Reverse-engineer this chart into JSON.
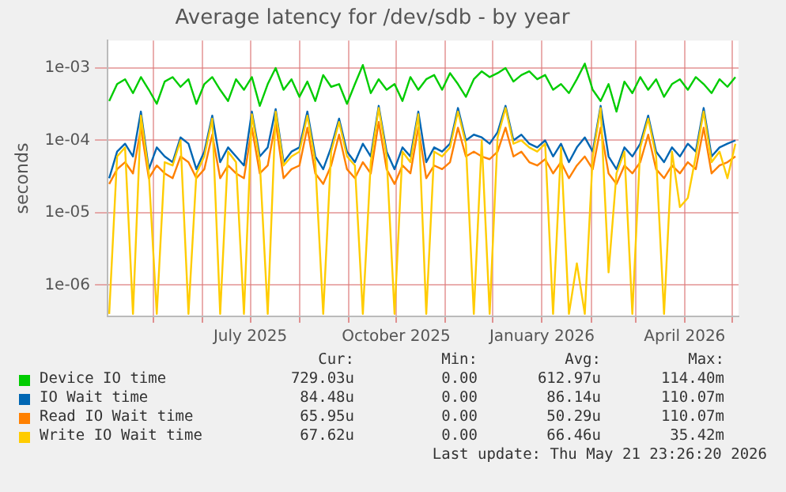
{
  "chart_data": {
    "type": "line",
    "title": "Average latency for /dev/sdb - by year",
    "ylabel": "seconds",
    "log": "y",
    "grid": true,
    "legend": "bottom",
    "marker": "none",
    "line_style": "solid",
    "xlim": [
      "2025-04-02",
      "2026-05-05"
    ],
    "xticks": [
      {
        "value": "2025-05-01",
        "label": null
      },
      {
        "value": "2025-06-01",
        "label": null
      },
      {
        "value": "2025-07-01",
        "label": "July 2025"
      },
      {
        "value": "2025-08-01",
        "label": null
      },
      {
        "value": "2025-09-01",
        "label": null
      },
      {
        "value": "2025-10-01",
        "label": "October 2025"
      },
      {
        "value": "2025-11-01",
        "label": null
      },
      {
        "value": "2025-12-01",
        "label": null
      },
      {
        "value": "2026-01-01",
        "label": "January 2026"
      },
      {
        "value": "2026-02-01",
        "label": null
      },
      {
        "value": "2026-03-01",
        "label": null
      },
      {
        "value": "2026-04-01",
        "label": "April 2026"
      },
      {
        "value": "2026-05-01",
        "label": null
      }
    ],
    "ylim": [
      3.7e-07,
      0.0024
    ],
    "yticks": [
      {
        "value": 1e-06,
        "label": "1e-06"
      },
      {
        "value": 1e-05,
        "label": "1e-05"
      },
      {
        "value": 0.0001,
        "label": "1e-04"
      },
      {
        "value": 0.001,
        "label": "1e-03"
      }
    ],
    "x": [
      "2025-04-03",
      "2025-04-08",
      "2025-04-13",
      "2025-04-18",
      "2025-04-23",
      "2025-04-28",
      "2025-05-03",
      "2025-05-08",
      "2025-05-13",
      "2025-05-18",
      "2025-05-23",
      "2025-05-28",
      "2025-06-02",
      "2025-06-07",
      "2025-06-12",
      "2025-06-17",
      "2025-06-22",
      "2025-06-27",
      "2025-07-02",
      "2025-07-07",
      "2025-07-12",
      "2025-07-17",
      "2025-07-22",
      "2025-07-27",
      "2025-08-01",
      "2025-08-06",
      "2025-08-11",
      "2025-08-16",
      "2025-08-21",
      "2025-08-26",
      "2025-08-31",
      "2025-09-05",
      "2025-09-10",
      "2025-09-15",
      "2025-09-20",
      "2025-09-25",
      "2025-09-30",
      "2025-10-05",
      "2025-10-10",
      "2025-10-15",
      "2025-10-20",
      "2025-10-25",
      "2025-10-30",
      "2025-11-04",
      "2025-11-09",
      "2025-11-14",
      "2025-11-19",
      "2025-11-24",
      "2025-11-29",
      "2025-12-04",
      "2025-12-09",
      "2025-12-14",
      "2025-12-19",
      "2025-12-24",
      "2025-12-29",
      "2026-01-03",
      "2026-01-08",
      "2026-01-13",
      "2026-01-18",
      "2026-01-23",
      "2026-01-28",
      "2026-02-02",
      "2026-02-07",
      "2026-02-12",
      "2026-02-17",
      "2026-02-22",
      "2026-02-27",
      "2026-03-04",
      "2026-03-09",
      "2026-03-14",
      "2026-03-19",
      "2026-03-24",
      "2026-03-29",
      "2026-04-03",
      "2026-04-08",
      "2026-04-13",
      "2026-04-18",
      "2026-04-23",
      "2026-04-28",
      "2026-05-03"
    ],
    "series": [
      {
        "name": "Device IO time",
        "color": "#00cc00",
        "values": [
          0.00035,
          0.0006,
          0.0007,
          0.00045,
          0.00075,
          0.0005,
          0.00032,
          0.00065,
          0.00075,
          0.00055,
          0.0007,
          0.00032,
          0.0006,
          0.00075,
          0.0005,
          0.00035,
          0.0007,
          0.0005,
          0.00075,
          0.0003,
          0.0006,
          0.001,
          0.0005,
          0.0007,
          0.0004,
          0.00065,
          0.00035,
          0.0008,
          0.00055,
          0.0006,
          0.00032,
          0.0006,
          0.0011,
          0.00045,
          0.0007,
          0.0005,
          0.0006,
          0.00035,
          0.00075,
          0.0005,
          0.0007,
          0.0008,
          0.0005,
          0.00085,
          0.0006,
          0.0004,
          0.0007,
          0.0009,
          0.00075,
          0.00085,
          0.001,
          0.00065,
          0.0008,
          0.0009,
          0.0007,
          0.0008,
          0.0005,
          0.0006,
          0.00045,
          0.0007,
          0.00115,
          0.0005,
          0.00035,
          0.0006,
          0.00025,
          0.00065,
          0.00045,
          0.00075,
          0.0005,
          0.0007,
          0.0004,
          0.0006,
          0.0007,
          0.0005,
          0.00075,
          0.0006,
          0.00045,
          0.0007,
          0.00055,
          0.00075
        ]
      },
      {
        "name": "IO Wait time",
        "color": "#0066b3",
        "values": [
          3e-05,
          7e-05,
          9e-05,
          6e-05,
          0.00025,
          4e-05,
          8e-05,
          6e-05,
          5e-05,
          0.00011,
          9e-05,
          4e-05,
          7e-05,
          0.00022,
          5e-05,
          8e-05,
          6e-05,
          4.5e-05,
          0.00025,
          6e-05,
          8e-05,
          0.00027,
          5e-05,
          7e-05,
          8e-05,
          0.00025,
          6e-05,
          4e-05,
          8e-05,
          0.0002,
          7e-05,
          5e-05,
          9e-05,
          6e-05,
          0.0003,
          7e-05,
          4e-05,
          8e-05,
          6e-05,
          0.00025,
          5e-05,
          8e-05,
          7e-05,
          9e-05,
          0.00028,
          0.0001,
          0.00012,
          0.00011,
          9e-05,
          0.00013,
          0.0003,
          0.0001,
          0.00012,
          9e-05,
          8e-05,
          0.0001,
          6e-05,
          9e-05,
          5e-05,
          8e-05,
          0.00011,
          7e-05,
          0.0003,
          6e-05,
          4e-05,
          8e-05,
          6e-05,
          9e-05,
          0.00022,
          7e-05,
          5e-05,
          8e-05,
          6e-05,
          9e-05,
          7e-05,
          0.00028,
          6e-05,
          8e-05,
          9e-05,
          0.0001
        ]
      },
      {
        "name": "Read IO Wait time",
        "color": "#ff8000",
        "values": [
          2.5e-05,
          4e-05,
          5e-05,
          3.5e-05,
          0.00015,
          3e-05,
          4.5e-05,
          3.5e-05,
          3e-05,
          6e-05,
          5e-05,
          3e-05,
          4e-05,
          0.00012,
          3e-05,
          4.5e-05,
          3.5e-05,
          3e-05,
          0.00015,
          3.5e-05,
          4.5e-05,
          0.00018,
          3e-05,
          4e-05,
          4.5e-05,
          0.00015,
          3.5e-05,
          2.5e-05,
          4.5e-05,
          0.00012,
          4e-05,
          3e-05,
          5e-05,
          3.5e-05,
          0.00018,
          4e-05,
          2.5e-05,
          4.5e-05,
          3.5e-05,
          0.00015,
          3e-05,
          4.5e-05,
          4e-05,
          5e-05,
          0.00015,
          6e-05,
          7e-05,
          6e-05,
          5.5e-05,
          7e-05,
          0.00015,
          6e-05,
          7e-05,
          5e-05,
          4.5e-05,
          5.5e-05,
          3.5e-05,
          5e-05,
          3e-05,
          4.5e-05,
          6e-05,
          4e-05,
          0.00015,
          3.5e-05,
          2.5e-05,
          4.5e-05,
          3.5e-05,
          5e-05,
          0.00012,
          4e-05,
          3e-05,
          4.5e-05,
          3.5e-05,
          5e-05,
          4e-05,
          0.00015,
          3.5e-05,
          4.5e-05,
          5e-05,
          6e-05
        ]
      },
      {
        "name": "Write IO Wait time",
        "color": "#ffcc00",
        "values": [
          4e-07,
          6e-05,
          8e-05,
          4e-07,
          0.00022,
          3.5e-05,
          4e-07,
          5e-05,
          4.5e-05,
          0.0001,
          4e-07,
          3.5e-05,
          6e-05,
          0.0002,
          4e-07,
          7e-05,
          5e-05,
          4e-07,
          0.00023,
          5e-05,
          4e-07,
          0.00025,
          4.5e-05,
          6e-05,
          7e-05,
          0.00022,
          5e-05,
          4e-07,
          7e-05,
          0.00018,
          6e-05,
          4.5e-05,
          4e-07,
          5e-05,
          0.00028,
          6e-05,
          4e-07,
          7e-05,
          5e-05,
          0.00023,
          4e-07,
          7e-05,
          6e-05,
          8e-05,
          0.00025,
          9e-05,
          4e-07,
          0.0001,
          4e-07,
          0.00011,
          0.00028,
          9e-05,
          0.0001,
          8e-05,
          7e-05,
          9e-05,
          4e-07,
          8e-05,
          4e-07,
          2e-06,
          4e-07,
          6e-05,
          0.00028,
          1.5e-06,
          3.5e-05,
          7e-05,
          4e-07,
          8e-05,
          0.0002,
          6e-05,
          4e-07,
          7e-05,
          1.2e-05,
          1.6e-05,
          6e-05,
          0.00025,
          5e-05,
          7e-05,
          3e-05,
          9e-05
        ]
      }
    ],
    "annotations": [
      "Cur:",
      "Min:",
      "Avg:",
      "Max:",
      "729.03u",
      "0.00",
      "612.97u",
      "114.40m",
      "84.48u",
      "0.00",
      "86.14u",
      "110.07m",
      "65.95u",
      "0.00",
      "50.29u",
      "110.07m",
      "67.62u",
      "0.00",
      "66.46u",
      "35.42m",
      "Last update: Thu May 21 23:26:20 2026"
    ]
  }
}
